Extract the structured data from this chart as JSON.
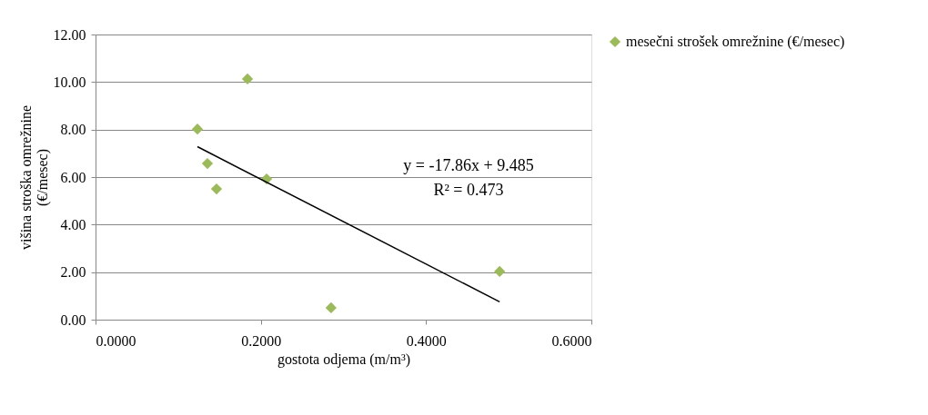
{
  "chart_data": {
    "type": "scatter",
    "xlabel": "gostota odjema (m/m³)",
    "ylabel": "višina stroška omrežnine (€/mesec)",
    "xlim": [
      0,
      0.6
    ],
    "ylim": [
      0,
      12
    ],
    "xticks": [
      {
        "value": 0,
        "label": "0.0000"
      },
      {
        "value": 0.2,
        "label": "0.2000"
      },
      {
        "value": 0.4,
        "label": "0.4000"
      },
      {
        "value": 0.6,
        "label": "0.6000"
      }
    ],
    "yticks": [
      {
        "value": 0,
        "label": "0.00"
      },
      {
        "value": 2,
        "label": "2.00"
      },
      {
        "value": 4,
        "label": "4.00"
      },
      {
        "value": 6,
        "label": "6.00"
      },
      {
        "value": 8,
        "label": "8.00"
      },
      {
        "value": 10,
        "label": "10.00"
      },
      {
        "value": 12,
        "label": "12.00"
      }
    ],
    "grid": "y",
    "legend": "right",
    "marker": "diamond",
    "series": [
      {
        "name": "mesečni strošek omrežnine (€/mesec)",
        "color": "#9bbb59",
        "x": [
          0.1233,
          0.1839,
          0.1354,
          0.1464,
          0.207,
          0.285,
          0.489
        ],
        "values": [
          8.02,
          10.13,
          6.57,
          5.5,
          5.92,
          0.5,
          2.03
        ]
      },
      {
        "type": "line",
        "marker": "none",
        "color": "#000000",
        "x": [
          0.1233,
          0.489
        ],
        "values": [
          7.28,
          0.75
        ]
      }
    ],
    "annotations": [
      "y = -17.86x + 9.485",
      "R² = 0.473"
    ]
  }
}
